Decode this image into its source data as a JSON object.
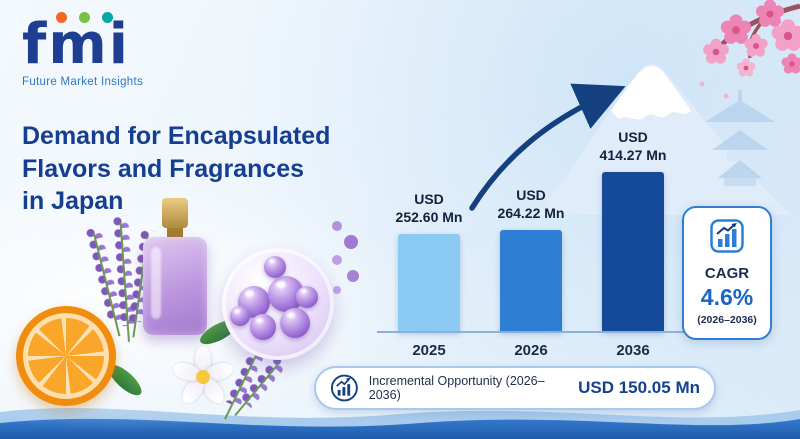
{
  "brand": {
    "logo_text": "fmi",
    "tagline": "Future Market Insights"
  },
  "title": {
    "line1": "Demand for Encapsulated",
    "line2": "Flavors and Fragrances",
    "line3": "in Japan"
  },
  "chart_data": {
    "type": "bar",
    "title": "Demand for Encapsulated Flavors and Fragrances in Japan",
    "categories": [
      "2025",
      "2026",
      "2036"
    ],
    "values": [
      252.6,
      264.22,
      414.27
    ],
    "currency": "USD",
    "unit": "Mn",
    "value_display": [
      "252.60 Mn",
      "264.22 Mn",
      "414.27 Mn"
    ],
    "xlabel": "",
    "ylabel": "",
    "ylim": [
      0,
      440
    ],
    "grid": false,
    "legend": "none",
    "bar_colors": [
      "#8bcbf3",
      "#2e7fd4",
      "#154a9a"
    ]
  },
  "cagr_card": {
    "label": "CAGR",
    "value": "4.6%",
    "period": "(2026–2036)"
  },
  "opportunity": {
    "label": "Incremental Opportunity (2026–2036)",
    "value": "USD 150.05 Mn"
  },
  "colors": {
    "title_blue": "#163e90",
    "accent_blue": "#2e7fd4",
    "navy": "#14407f",
    "light_bar": "#8bcbf3",
    "mid_bar": "#2e7fd4",
    "dark_bar": "#154a9a",
    "blossom_pink": "#f2a2c6"
  }
}
